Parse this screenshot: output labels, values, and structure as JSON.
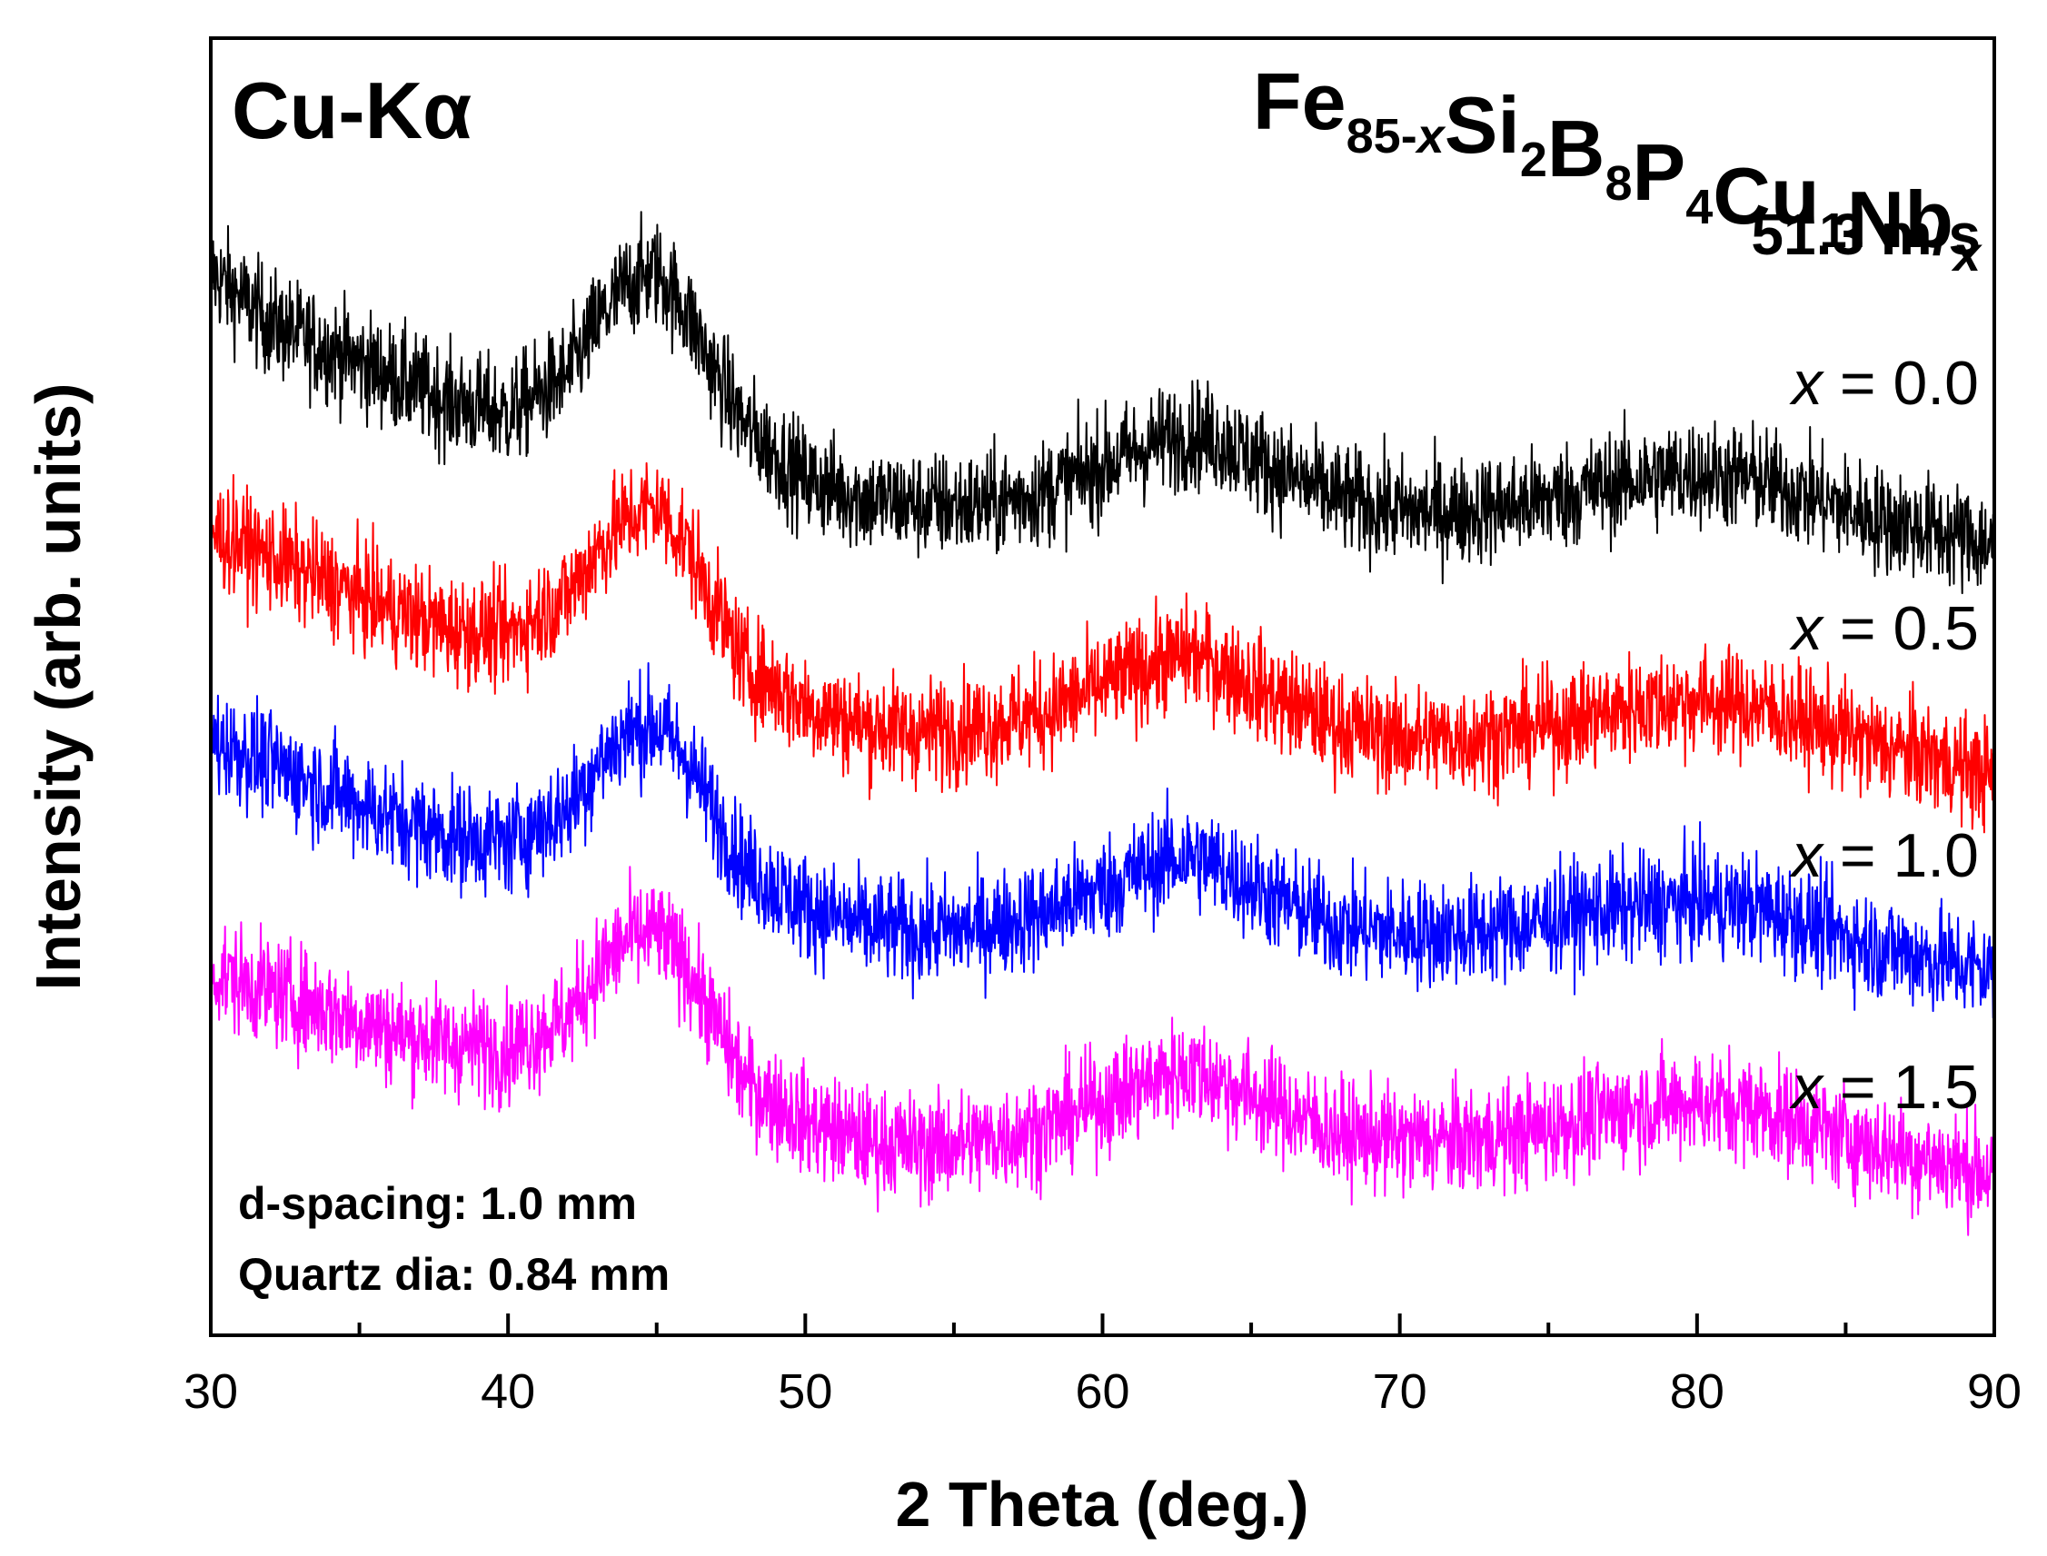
{
  "chart_data": {
    "type": "line",
    "title": "",
    "xlabel": "2 Theta (deg.)",
    "ylabel": "Intensity (arb. units)",
    "xlim": [
      30,
      90
    ],
    "ylim": [
      0,
      100
    ],
    "x_ticks": [
      30,
      40,
      50,
      60,
      70,
      80,
      90
    ],
    "x_tick_labels": [
      "30",
      "40",
      "50",
      "60",
      "70",
      "80",
      "90"
    ],
    "y_ticks": [],
    "grid": false,
    "radiation": "Cu-Kα",
    "composition": {
      "parts": [
        {
          "base": "Fe",
          "sub": "85-",
          "sub_var": "x"
        },
        {
          "base": "Si",
          "sub": "2"
        },
        {
          "base": "B",
          "sub": "8"
        },
        {
          "base": "P",
          "sub": "4"
        },
        {
          "base": "Cu",
          "sub": "1"
        },
        {
          "base": "Nb",
          "sub": "",
          "sub_var": "x"
        }
      ]
    },
    "wheel_speed": "51.3 m/s",
    "notes": [
      "d-spacing: 1.0 mm",
      "Quartz dia: 0.84 mm"
    ],
    "series": [
      {
        "name": "x = 0.0",
        "var": "x",
        "label_value": " = 0.0",
        "color": "#000000",
        "noise": 4.5,
        "x": [
          30,
          32,
          34,
          36,
          38,
          40,
          42,
          43,
          44,
          45,
          46,
          47,
          48,
          50,
          52,
          54,
          56,
          58,
          60,
          62,
          63,
          64,
          66,
          68,
          70,
          72,
          74,
          76,
          78,
          80,
          82,
          84,
          86,
          88,
          90
        ],
        "y": [
          82,
          78,
          76,
          74,
          72,
          71,
          74,
          78,
          81,
          82,
          79,
          74,
          70,
          66,
          64.5,
          64,
          64,
          65,
          67,
          69,
          69.5,
          69,
          66.5,
          64.5,
          63.5,
          63.5,
          64,
          65,
          66,
          66.5,
          66,
          64.5,
          63,
          62,
          61
        ]
      },
      {
        "name": "x = 0.5",
        "var": "x",
        "label_value": " = 0.5",
        "color": "#ff0000",
        "noise": 4.5,
        "x": [
          30,
          32,
          34,
          36,
          38,
          40,
          42,
          43,
          44,
          45,
          46,
          47,
          48,
          50,
          52,
          54,
          56,
          58,
          60,
          62,
          63,
          64,
          66,
          68,
          70,
          72,
          74,
          76,
          78,
          80,
          82,
          84,
          86,
          88,
          90
        ],
        "y": [
          62,
          60,
          58,
          56,
          54.5,
          54,
          57,
          60.5,
          63,
          64,
          61,
          56,
          51.5,
          48.5,
          47,
          46.5,
          47,
          48,
          50,
          52,
          52.5,
          51.5,
          49,
          47,
          46,
          46,
          46.5,
          47.5,
          48.5,
          49,
          48.5,
          47,
          45.5,
          44.5,
          43
        ]
      },
      {
        "name": "x = 1.0",
        "var": "x",
        "label_value": " = 1.0",
        "color": "#0000ff",
        "noise": 4.5,
        "x": [
          30,
          32,
          34,
          36,
          38,
          40,
          42,
          43,
          44,
          45,
          46,
          47,
          48,
          50,
          52,
          54,
          56,
          58,
          60,
          62,
          63,
          64,
          66,
          68,
          70,
          72,
          74,
          76,
          78,
          80,
          82,
          84,
          86,
          88,
          90
        ],
        "y": [
          46,
          44,
          42,
          40,
          38.5,
          38,
          40.5,
          44,
          46.5,
          47,
          44.5,
          40,
          36,
          33,
          31.5,
          31,
          31.5,
          32.5,
          34.5,
          36.5,
          37,
          36,
          33.5,
          31.5,
          31,
          31,
          31.5,
          32.5,
          33,
          33.5,
          33,
          31.5,
          30,
          29,
          28
        ]
      },
      {
        "name": "x = 1.5",
        "var": "x",
        "label_value": " = 1.5",
        "color": "#ff00ff",
        "noise": 4.5,
        "x": [
          30,
          32,
          34,
          36,
          38,
          40,
          42,
          43,
          44,
          45,
          46,
          47,
          48,
          50,
          52,
          54,
          56,
          58,
          60,
          62,
          63,
          64,
          66,
          68,
          70,
          72,
          74,
          76,
          78,
          80,
          82,
          84,
          86,
          88,
          90
        ],
        "y": [
          28,
          26.5,
          25,
          23.5,
          22.5,
          22,
          24.5,
          28,
          30.5,
          31,
          28.5,
          24,
          19.5,
          16.5,
          15,
          14.5,
          15,
          16,
          18,
          20,
          20.5,
          19.5,
          17.5,
          15.5,
          15,
          15,
          15.5,
          16.5,
          17.5,
          18,
          17.5,
          16,
          14.5,
          13.5,
          12.5
        ]
      }
    ]
  }
}
